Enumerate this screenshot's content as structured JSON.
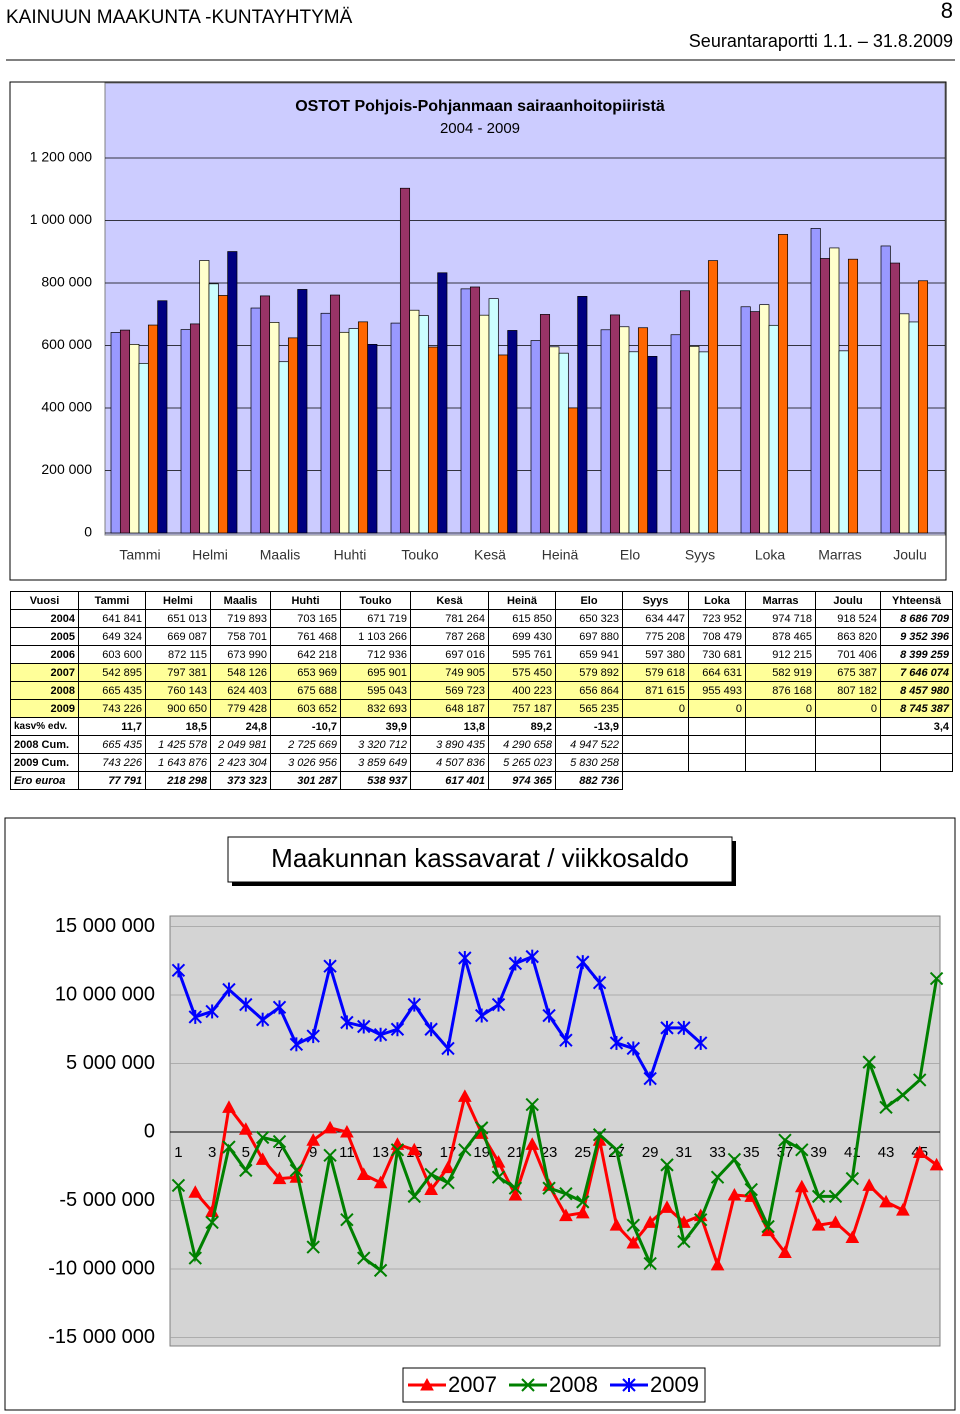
{
  "header": {
    "title": "KAINUUN MAAKUNTA -KUNTAYHTYMÄ",
    "page": "8",
    "subtitle": "Seurantaraportti 1.1. – 31.8.2009"
  },
  "table": {
    "rows": [
      [
        "Vuosi",
        "Tammi",
        "Helmi",
        "Maalis",
        "Huhti",
        "Touko",
        "Kesä",
        "Heinä",
        "Elo",
        "Syys",
        "Loka",
        "Marras",
        "Joulu",
        "Yhteensä"
      ],
      [
        "2004",
        "641 841",
        "651 013",
        "719 893",
        "703 165",
        "671 719",
        "781 264",
        "615 850",
        "650 323",
        "634 447",
        "723 952",
        "974 718",
        "918 524",
        "8 686 709"
      ],
      [
        "2005",
        "649 324",
        "669 087",
        "758 701",
        "761 468",
        "1 103 266",
        "787 268",
        "699 430",
        "697 880",
        "775 208",
        "708 479",
        "878 465",
        "863 820",
        "9 352 396"
      ],
      [
        "2006",
        "603 600",
        "872 115",
        "673 990",
        "642 218",
        "712 936",
        "697 016",
        "595 761",
        "659 941",
        "597 380",
        "730 681",
        "912 215",
        "701 406",
        "8 399 259"
      ],
      [
        "2007",
        "542 895",
        "797 381",
        "548 126",
        "653 969",
        "695 901",
        "749 905",
        "575 450",
        "579 892",
        "579 618",
        "664 631",
        "582 919",
        "675 387",
        "7 646 074"
      ],
      [
        "2008",
        "665 435",
        "760 143",
        "624 403",
        "675 688",
        "595 043",
        "569 723",
        "400 223",
        "656 864",
        "871 615",
        "955 493",
        "876 168",
        "807 182",
        "8 457 980"
      ],
      [
        "2009",
        "743 226",
        "900 650",
        "779 428",
        "603 652",
        "832 693",
        "648 187",
        "757 187",
        "565 235",
        "0",
        "0",
        "0",
        "0",
        "8 745 387"
      ],
      [
        "kasv% edv.",
        "11,7",
        "18,5",
        "24,8",
        "-10,7",
        "39,9",
        "13,8",
        "89,2",
        "-13,9",
        null,
        null,
        null,
        null,
        "3,4"
      ],
      [
        "2008 Cum.",
        "665 435",
        "1 425 578",
        "2 049 981",
        "2 725 669",
        "3 320 712",
        "3 890 435",
        "4 290 658",
        "4 947 522",
        null,
        null,
        null,
        null,
        null
      ],
      [
        "2009 Cum.",
        "743 226",
        "1 643 876",
        "2 423 304",
        "3 026 956",
        "3 859 649",
        "4 507 836",
        "5 265 023",
        "5 830 258",
        null,
        null,
        null,
        null,
        null
      ],
      [
        "Ero euroa",
        "77 791",
        "218 298",
        "373 323",
        "301 287",
        "538 937",
        "617 401",
        "974 365",
        "882 736",
        null,
        null,
        null,
        null,
        null
      ]
    ]
  },
  "chart_data": [
    {
      "type": "bar",
      "title": "OSTOT Pohjois-Pohjanmaan sairaanhoitopiiristä",
      "subtitle": "2004 - 2009",
      "categories": [
        "Tammi",
        "Helmi",
        "Maalis",
        "Huhti",
        "Touko",
        "Kesä",
        "Heinä",
        "Elo",
        "Syys",
        "Loka",
        "Marras",
        "Joulu"
      ],
      "series": [
        {
          "color": "#9999ff",
          "values": [
            641841,
            651013,
            719893,
            703165,
            671719,
            781264,
            615850,
            650323,
            634447,
            723952,
            974718,
            918524
          ]
        },
        {
          "color": "#993366",
          "values": [
            649324,
            669087,
            758701,
            761468,
            1103266,
            787268,
            699430,
            697880,
            775208,
            708479,
            878465,
            863820
          ]
        },
        {
          "color": "#ffffcc",
          "values": [
            603600,
            872115,
            673990,
            642218,
            712936,
            697016,
            595761,
            659941,
            597380,
            730681,
            912215,
            701406
          ]
        },
        {
          "color": "#ccffff",
          "values": [
            542895,
            797381,
            548126,
            653969,
            695901,
            749905,
            575450,
            579892,
            579618,
            664631,
            582919,
            675387
          ]
        },
        {
          "color": "#ff6600",
          "values": [
            665435,
            760143,
            624403,
            675688,
            595043,
            569723,
            400223,
            656864,
            871615,
            955493,
            876168,
            807182
          ]
        },
        {
          "color": "#000080",
          "values": [
            743226,
            900650,
            779428,
            603652,
            832693,
            648187,
            757187,
            565235,
            0,
            0,
            0,
            0
          ]
        }
      ],
      "ylim": [
        0,
        1200000
      ],
      "yticks": [
        0,
        {
          "value": 200000,
          "label": "200 000"
        },
        {
          "value": 400000,
          "label": "400 000"
        },
        {
          "value": 600000,
          "label": "600 000"
        },
        {
          "value": 800000,
          "label": "800 000"
        },
        {
          "value": 1000000,
          "label": "1 000 000"
        },
        {
          "value": 1200000,
          "label": "1 200 000"
        }
      ],
      "grid": true
    },
    {
      "type": "line",
      "title": "Maakunnan kassavarat / viikkosaldo",
      "categories": [
        1,
        null,
        3,
        null,
        5,
        null,
        7,
        null,
        9,
        null,
        11,
        null,
        13,
        null,
        15,
        null,
        17,
        null,
        19,
        null,
        21,
        null,
        23,
        null,
        25,
        null,
        27,
        null,
        29,
        null,
        31,
        null,
        33,
        null,
        35,
        null,
        37,
        null,
        39,
        null,
        41,
        null,
        43,
        null,
        45,
        null
      ],
      "series": [
        {
          "name": "2007",
          "color": "#ff0000",
          "marker": "triangle",
          "values": [
            null,
            -4400000,
            -5800000,
            1800000,
            200000,
            -2000000,
            -3400000,
            -3300000,
            -600000,
            300000,
            0,
            -3100000,
            -3700000,
            -900000,
            -1300000,
            -4200000,
            -2600000,
            2600000,
            -100000,
            -2200000,
            -4600000,
            -900000,
            -3900000,
            -6100000,
            -5900000,
            -600000,
            -6800000,
            -8100000,
            -6600000,
            -5500000,
            -6600000,
            -6100000,
            -9700000,
            -4600000,
            -4700000,
            -7200000,
            -8800000,
            -4000000,
            -6800000,
            -6600000,
            -7700000,
            -3900000,
            -5100000,
            -5700000,
            -1500000,
            -2400000
          ]
        },
        {
          "name": "2008",
          "color": "#008000",
          "marker": "x",
          "values": [
            -3900000,
            -9200000,
            -6600000,
            -1100000,
            -2800000,
            -400000,
            -700000,
            -2800000,
            -8400000,
            -1700000,
            -6400000,
            -9200000,
            -10100000,
            -1300000,
            -4700000,
            -3100000,
            -3700000,
            -1300000,
            300000,
            -3300000,
            -4100000,
            2000000,
            -4100000,
            -4500000,
            -5100000,
            -200000,
            -1300000,
            -6800000,
            -9600000,
            -2400000,
            -8000000,
            -6400000,
            -3300000,
            -2000000,
            -4200000,
            -6900000,
            -600000,
            -1300000,
            -4700000,
            -4700000,
            -3400000,
            5100000,
            1800000,
            2700000,
            3800000,
            11200000
          ]
        },
        {
          "name": "2009",
          "color": "#0000ff",
          "marker": "star",
          "values": [
            11800000,
            8400000,
            8800000,
            10400000,
            9300000,
            8200000,
            9100000,
            6400000,
            7000000,
            12100000,
            8000000,
            7700000,
            7100000,
            7500000,
            9300000,
            7500000,
            6100000,
            12700000,
            8500000,
            9300000,
            12300000,
            12800000,
            8500000,
            6700000,
            12400000,
            10900000,
            6500000,
            6100000,
            3900000,
            7600000,
            7600000,
            6500000,
            null,
            null,
            null,
            null,
            null,
            null,
            null,
            null,
            null,
            null,
            null,
            null,
            null,
            null
          ]
        }
      ],
      "ylim": [
        -15000000,
        15000000
      ],
      "yticks": [
        {
          "value": -15000000,
          "label": "-15 000 000"
        },
        {
          "value": -10000000,
          "label": "-10 000 000"
        },
        {
          "value": -5000000,
          "label": "-5 000 000"
        },
        0,
        {
          "value": 5000000,
          "label": "5 000 000"
        },
        {
          "value": 10000000,
          "label": "10 000 000"
        },
        {
          "value": 15000000,
          "label": "15 000 000"
        }
      ],
      "grid": true,
      "legend": "bottom"
    }
  ]
}
